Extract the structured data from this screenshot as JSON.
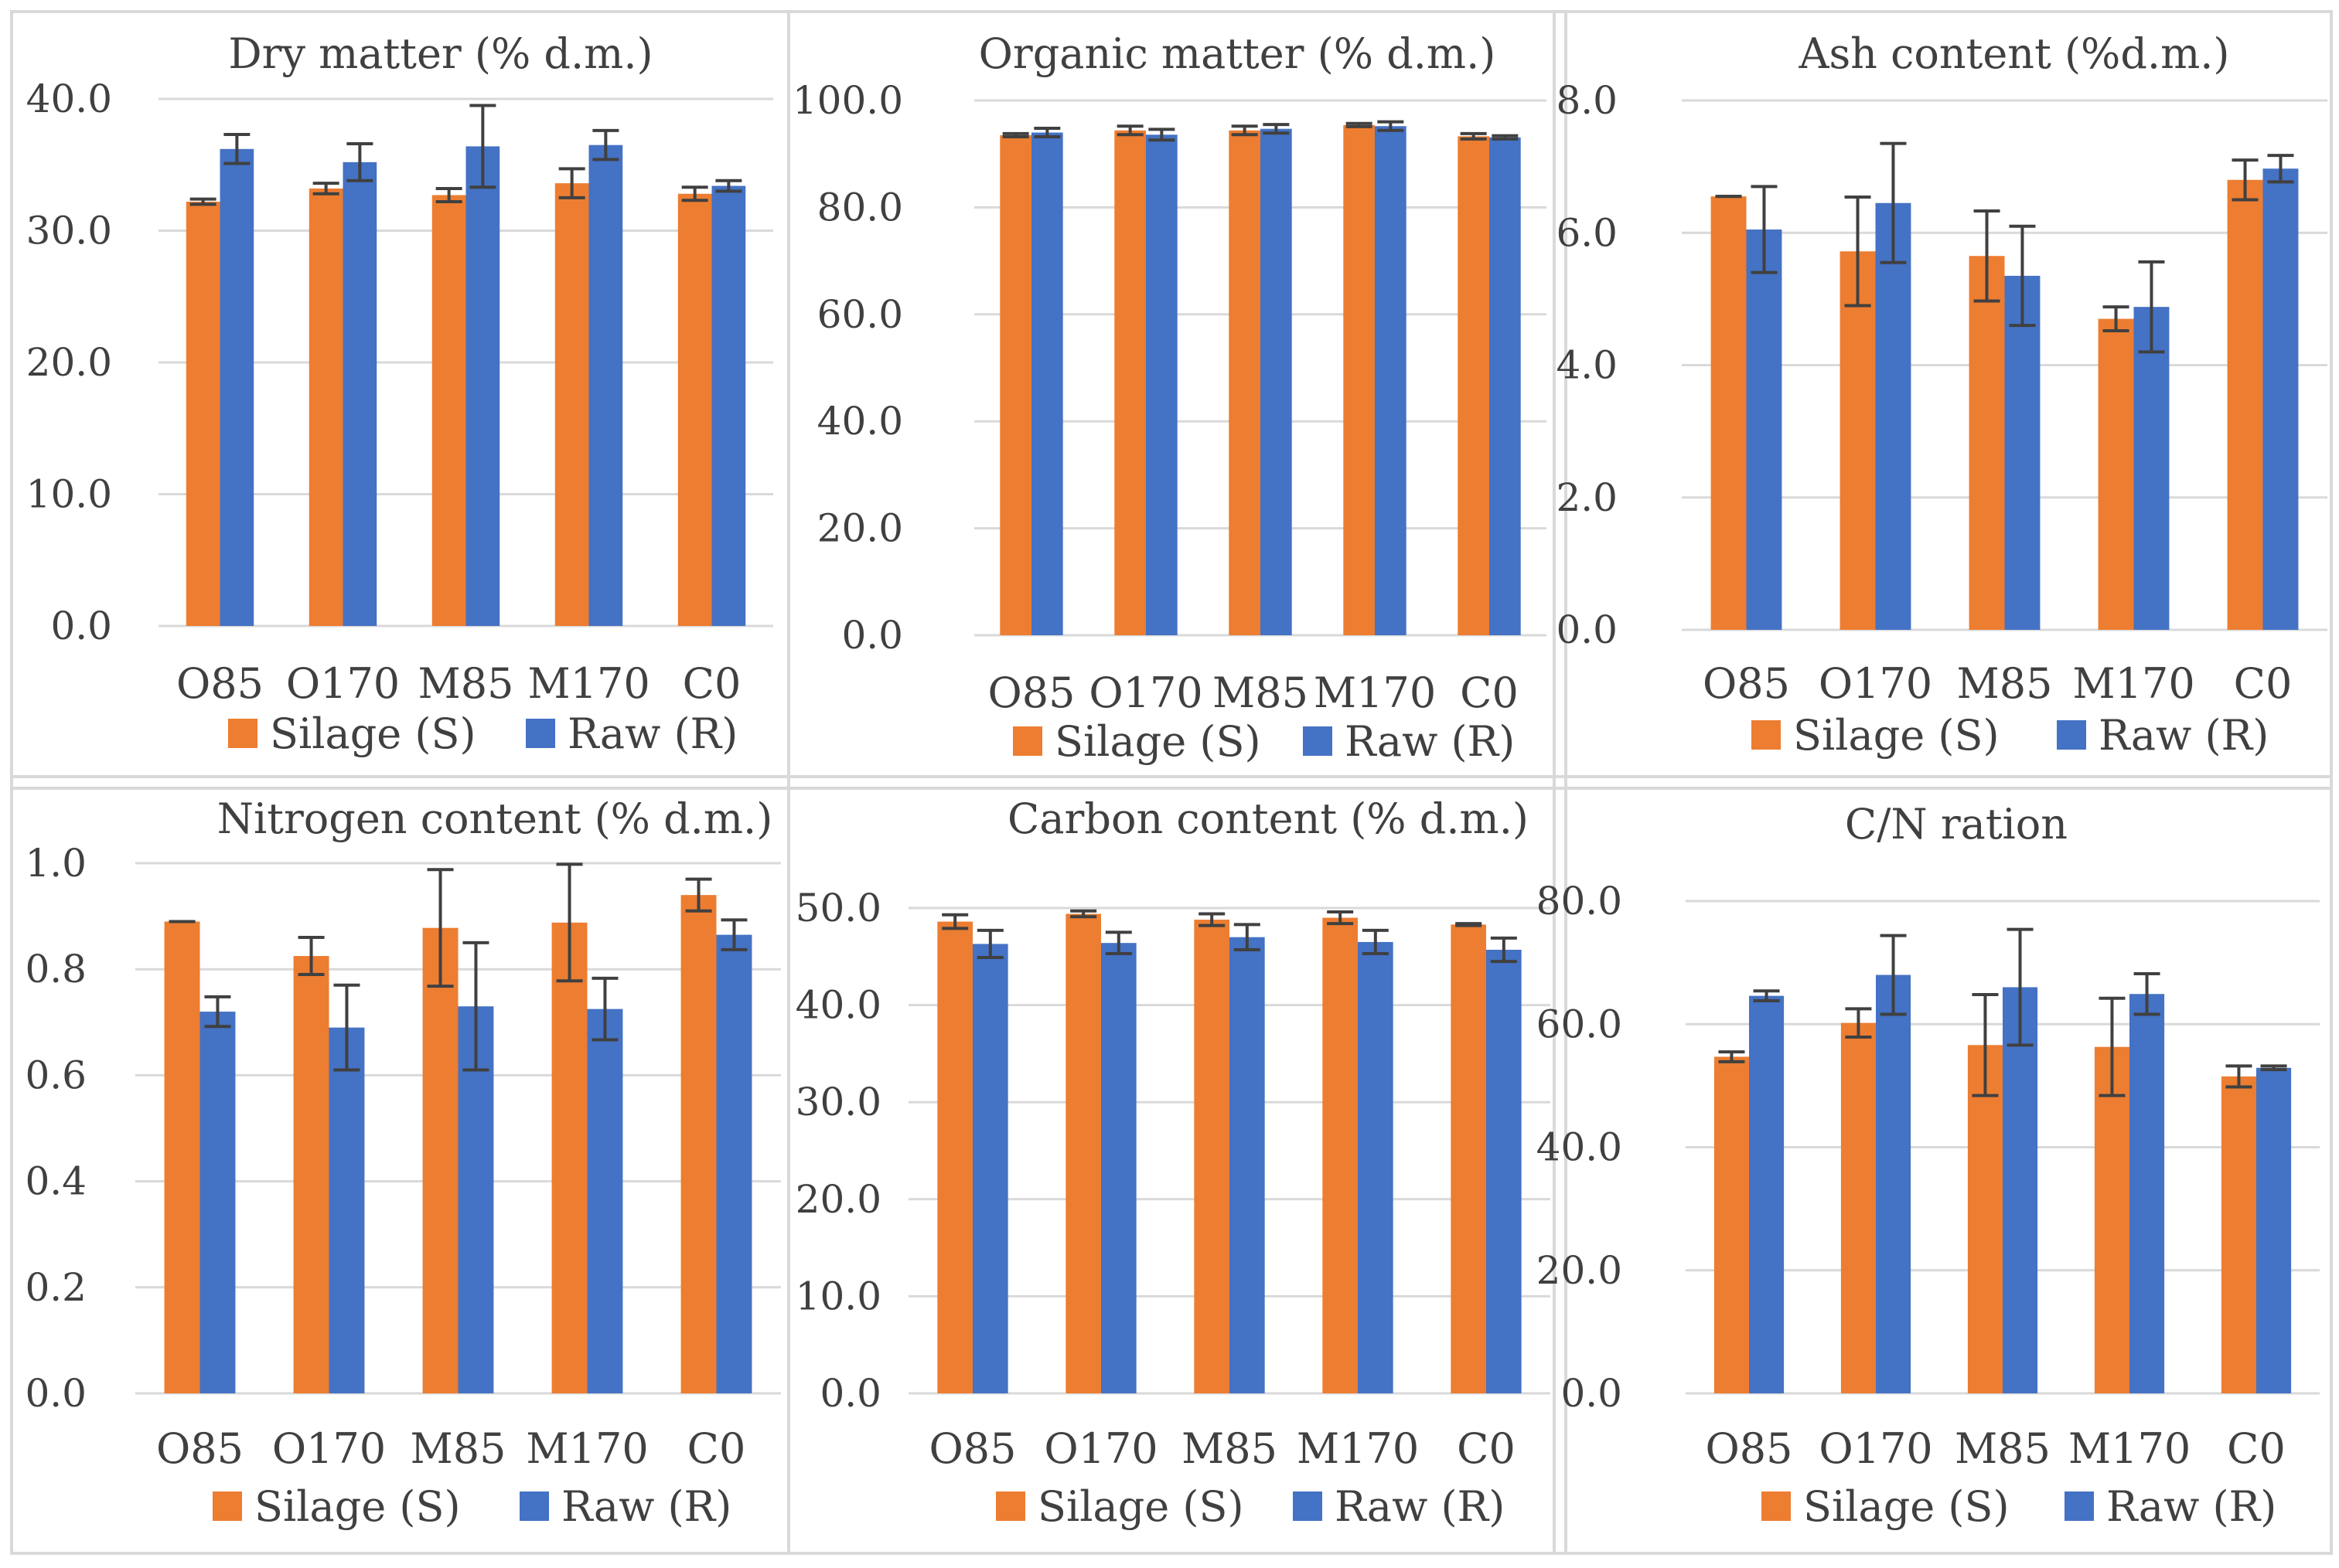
{
  "legend": {
    "silage_label": "Silage (S)",
    "raw_label": "Raw (R)"
  },
  "colors": {
    "silage": "#ED7D31",
    "raw": "#4472C4",
    "error_bar": "#404040",
    "gridline": "#D9D9D9",
    "panel_border": "#D9D9D9"
  },
  "chart_data": [
    {
      "type": "bar",
      "title": "Dry matter (% d.m.)",
      "categories": [
        "O85",
        "O170",
        "M85",
        "M170",
        "C0"
      ],
      "ylim": [
        0,
        40
      ],
      "ticks": [
        0,
        10,
        20,
        30,
        40
      ],
      "tick_labels": [
        "0.0",
        "10.0",
        "20.0",
        "30.0",
        "40.0"
      ],
      "series": [
        {
          "name": "Silage (S)",
          "values": [
            32.2,
            33.2,
            32.7,
            33.6,
            32.8
          ],
          "errors": [
            0.2,
            0.4,
            0.5,
            1.1,
            0.5
          ]
        },
        {
          "name": "Raw (R)",
          "values": [
            36.2,
            35.2,
            36.4,
            36.5,
            33.4
          ],
          "errors": [
            1.1,
            1.4,
            3.1,
            1.1,
            0.4
          ]
        }
      ]
    },
    {
      "type": "bar",
      "title": "Organic matter (% d.m.)",
      "categories": [
        "O85",
        "O170",
        "M85",
        "M170",
        "C0"
      ],
      "ylim": [
        0,
        100
      ],
      "ticks": [
        0,
        20,
        40,
        60,
        80,
        100
      ],
      "tick_labels": [
        "0.0",
        "20.0",
        "40.0",
        "60.0",
        "80.0",
        "100.0"
      ],
      "series": [
        {
          "name": "Silage (S)",
          "values": [
            93.5,
            94.4,
            94.4,
            95.4,
            93.3
          ],
          "errors": [
            0.3,
            0.8,
            0.8,
            0.3,
            0.5
          ]
        },
        {
          "name": "Raw (R)",
          "values": [
            94.0,
            93.6,
            94.7,
            95.2,
            93.1
          ],
          "errors": [
            0.8,
            1.0,
            0.8,
            0.8,
            0.3
          ]
        }
      ]
    },
    {
      "type": "bar",
      "title": "Ash content (%d.m.)",
      "categories": [
        "O85",
        "O170",
        "M85",
        "M170",
        "C0"
      ],
      "ylim": [
        0,
        8
      ],
      "ticks": [
        0,
        2,
        4,
        6,
        8
      ],
      "tick_labels": [
        "0.0",
        "2.0",
        "4.0",
        "6.0",
        "8.0"
      ],
      "series": [
        {
          "name": "Silage (S)",
          "values": [
            6.55,
            5.72,
            5.65,
            4.7,
            6.8
          ],
          "errors": [
            0.0,
            0.82,
            0.68,
            0.18,
            0.3
          ]
        },
        {
          "name": "Raw (R)",
          "values": [
            6.05,
            6.45,
            5.35,
            4.88,
            6.97
          ],
          "errors": [
            0.65,
            0.9,
            0.75,
            0.68,
            0.2
          ]
        }
      ]
    },
    {
      "type": "bar",
      "title": "Nitrogen content (% d.m.)",
      "categories": [
        "O85",
        "O170",
        "M85",
        "M170",
        "C0"
      ],
      "ylim": [
        0,
        1
      ],
      "ticks": [
        0,
        0.2,
        0.4,
        0.6,
        0.8,
        1.0
      ],
      "tick_labels": [
        "0.0",
        "0.2",
        "0.4",
        "0.6",
        "0.8",
        "1.0"
      ],
      "series": [
        {
          "name": "Silage (S)",
          "values": [
            0.89,
            0.825,
            0.878,
            0.888,
            0.94
          ],
          "errors": [
            0.0,
            0.035,
            0.11,
            0.11,
            0.03
          ]
        },
        {
          "name": "Raw (R)",
          "values": [
            0.72,
            0.69,
            0.73,
            0.725,
            0.865
          ],
          "errors": [
            0.028,
            0.08,
            0.12,
            0.058,
            0.028
          ]
        }
      ]
    },
    {
      "type": "bar",
      "title": "Carbon content (% d.m.)",
      "categories": [
        "O85",
        "O170",
        "M85",
        "M170",
        "C0"
      ],
      "ylim": [
        0,
        50
      ],
      "ticks": [
        0,
        10,
        20,
        30,
        40,
        50
      ],
      "tick_labels": [
        "0.0",
        "10.0",
        "20.0",
        "30.0",
        "40.0",
        "50.0"
      ],
      "series": [
        {
          "name": "Silage (S)",
          "values": [
            48.6,
            49.4,
            48.8,
            49.0,
            48.3
          ],
          "errors": [
            0.7,
            0.3,
            0.6,
            0.6,
            0.1
          ]
        },
        {
          "name": "Raw (R)",
          "values": [
            46.3,
            46.4,
            47.0,
            46.5,
            45.7
          ],
          "errors": [
            1.4,
            1.1,
            1.3,
            1.2,
            1.2
          ]
        }
      ]
    },
    {
      "type": "bar",
      "title": "C/N ration",
      "categories": [
        "O85",
        "O170",
        "M85",
        "M170",
        "C0"
      ],
      "ylim": [
        0,
        80
      ],
      "ticks": [
        0,
        20,
        40,
        60,
        80
      ],
      "tick_labels": [
        "0.0",
        "20.0",
        "40.0",
        "60.0",
        "80.0"
      ],
      "series": [
        {
          "name": "Silage (S)",
          "values": [
            54.7,
            60.2,
            56.6,
            56.3,
            51.5
          ],
          "errors": [
            0.8,
            2.3,
            8.2,
            7.9,
            1.7
          ]
        },
        {
          "name": "Raw (R)",
          "values": [
            64.6,
            68.0,
            66.0,
            64.9,
            52.9
          ],
          "errors": [
            0.8,
            6.4,
            9.4,
            3.3,
            0.3
          ]
        }
      ]
    }
  ]
}
